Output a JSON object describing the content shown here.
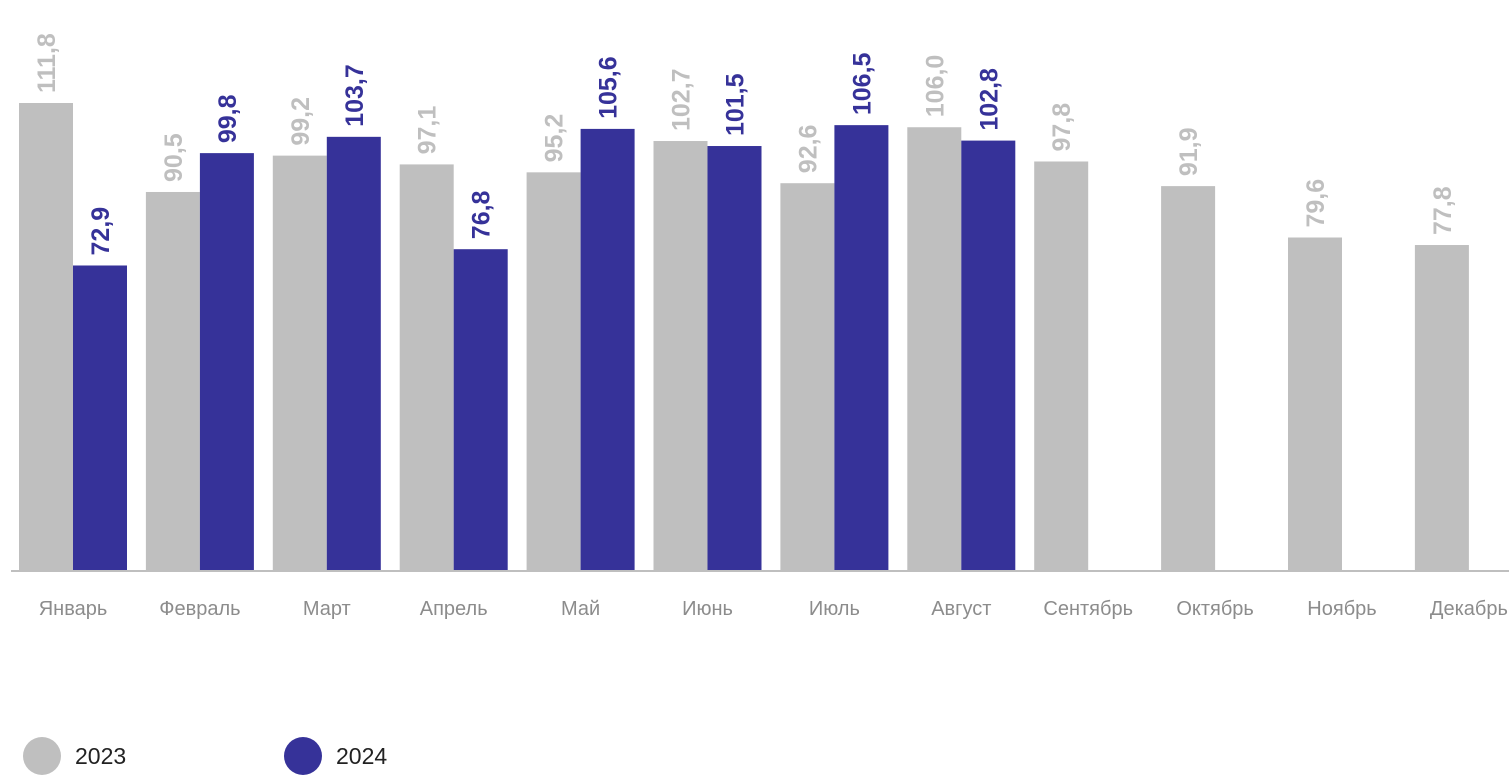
{
  "chart_data": {
    "type": "bar",
    "categories": [
      "Январь",
      "Февраль",
      "Март",
      "Апрель",
      "Май",
      "Июнь",
      "Июль",
      "Август",
      "Сентябрь",
      "Октябрь",
      "Ноябрь",
      "Декабрь"
    ],
    "series": [
      {
        "name": "2023",
        "color": "#bfbfbf",
        "values": [
          111.8,
          90.5,
          99.2,
          97.1,
          95.2,
          102.7,
          92.6,
          106.0,
          97.8,
          91.9,
          79.6,
          77.8
        ],
        "labels": [
          "111,8",
          "90,5",
          "99,2",
          "97,1",
          "95,2",
          "102,7",
          "92,6",
          "106,0",
          "97,8",
          "91,9",
          "79,6",
          "77,8"
        ]
      },
      {
        "name": "2024",
        "color": "#363299",
        "values": [
          72.9,
          99.8,
          103.7,
          76.8,
          105.6,
          101.5,
          106.5,
          102.8,
          null,
          null,
          null,
          null
        ],
        "labels": [
          "72,9",
          "99,8",
          "103,7",
          "76,8",
          "105,6",
          "101,5",
          "106,5",
          "102,8",
          null,
          null,
          null,
          null
        ]
      }
    ],
    "title": "",
    "xlabel": "",
    "ylabel": "",
    "ylim": [
      0,
      111.8
    ],
    "grid": false,
    "legend_position": "bottom-left"
  }
}
